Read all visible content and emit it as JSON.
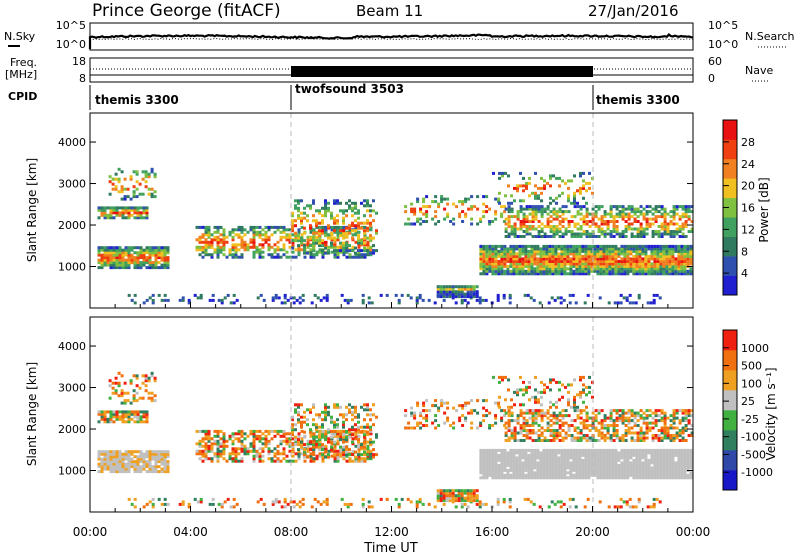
{
  "header": {
    "station": "Prince George (fitACF)",
    "beam": "Beam 11",
    "date": "27/Jan/2016"
  },
  "side_labels": {
    "nsky": "N.Sky",
    "freq_top": "Freq.",
    "freq_unit": "[MHz]",
    "cpid": "CPID",
    "nsearch": "N.Search",
    "nave": "Nave"
  },
  "colors": {
    "power_bar": [
      "#2020d0",
      "#3050b0",
      "#307a60",
      "#40a060",
      "#80c040",
      "#f0c020",
      "#f08020",
      "#f04010",
      "#e81010"
    ],
    "velocity_bar": [
      "#1818c8",
      "#3048a8",
      "#308060",
      "#40b040",
      "#c0c0c0",
      "#f0a020",
      "#f07010",
      "#f02010"
    ]
  },
  "chart_data": [
    {
      "type": "line",
      "name": "noise",
      "left_ticks": [
        "10^5",
        "10^0"
      ],
      "right_ticks": [
        "10^5",
        "10^0"
      ]
    },
    {
      "type": "line",
      "name": "frequency-nave",
      "left_ticks": [
        "18",
        "8"
      ],
      "right_ticks": [
        "60",
        "0"
      ]
    },
    {
      "type": "bar",
      "name": "cpid",
      "segments": [
        {
          "label": "themis 3300",
          "start": 0,
          "end": 8
        },
        {
          "label": "twofsound 3503",
          "start": 8,
          "end": 20
        },
        {
          "label": "themis 3300",
          "start": 20,
          "end": 24
        }
      ]
    },
    {
      "type": "heatmap",
      "name": "power",
      "ylabel": "Slant Range [km]",
      "yticks": [
        "4000",
        "3000",
        "2000",
        "1000"
      ],
      "ylim": [
        0,
        4700
      ],
      "colorbar_label": "Power [dB]",
      "colorbar_ticks": [
        "28",
        "24",
        "20",
        "16",
        "12",
        "8",
        "4"
      ]
    },
    {
      "type": "heatmap",
      "name": "velocity",
      "ylabel": "Slant Range [km]",
      "yticks": [
        "4000",
        "3000",
        "2000",
        "1000"
      ],
      "ylim": [
        0,
        4700
      ],
      "colorbar_label": "Velocity [m s⁻¹]",
      "colorbar_ticks": [
        "1000",
        "500",
        "100",
        "25",
        "-25",
        "-100",
        "-500",
        "-1000"
      ]
    }
  ],
  "x_axis": {
    "label": "Time UT",
    "ticks": [
      "00:00",
      "04:00",
      "08:00",
      "12:00",
      "16:00",
      "20:00",
      "00:00"
    ]
  }
}
